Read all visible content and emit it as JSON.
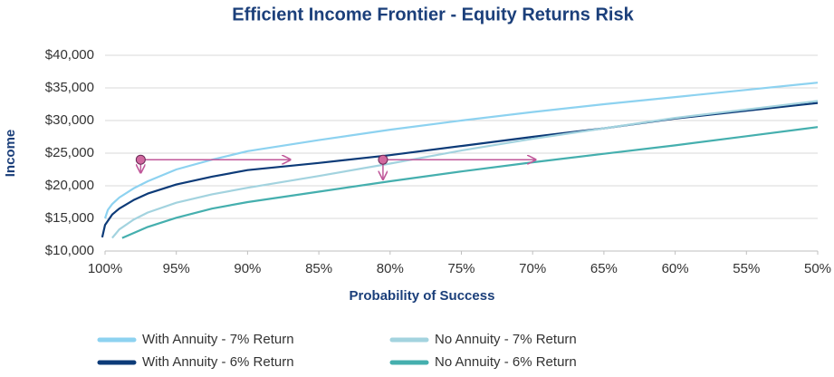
{
  "chart_data": {
    "type": "line",
    "title": "Efficient Income Frontier - Equity Returns Risk",
    "x_label": "Probability of Success",
    "y_label": "Income",
    "xlim": [
      100,
      50
    ],
    "ylim": [
      10000,
      40000
    ],
    "xticks": [
      {
        "value": 100,
        "label": "100%"
      },
      {
        "value": 95,
        "label": "95%"
      },
      {
        "value": 90,
        "label": "90%"
      },
      {
        "value": 85,
        "label": "85%"
      },
      {
        "value": 80,
        "label": "80%"
      },
      {
        "value": 75,
        "label": "75%"
      },
      {
        "value": 70,
        "label": "70%"
      },
      {
        "value": 65,
        "label": "65%"
      },
      {
        "value": 60,
        "label": "60%"
      },
      {
        "value": 55,
        "label": "55%"
      },
      {
        "value": 50,
        "label": "50%"
      }
    ],
    "yticks": [
      {
        "value": 10000,
        "label": "$10,000"
      },
      {
        "value": 15000,
        "label": "$15,000"
      },
      {
        "value": 20000,
        "label": "$20,000"
      },
      {
        "value": 25000,
        "label": "$25,000"
      },
      {
        "value": 30000,
        "label": "$30,000"
      },
      {
        "value": 35000,
        "label": "$35,000"
      },
      {
        "value": 40000,
        "label": "$40,000"
      }
    ],
    "grid": true,
    "series": [
      {
        "name": "With Annuity - 7% Return",
        "color": "#8dd2f0",
        "x": [
          100,
          99.8,
          99.5,
          99,
          98,
          97,
          95,
          92.5,
          90,
          85,
          80,
          75,
          70,
          65,
          60,
          55,
          50
        ],
        "values": [
          15000,
          16300,
          17200,
          18200,
          19600,
          20700,
          22500,
          24000,
          25300,
          27000,
          28600,
          30000,
          31300,
          32500,
          33600,
          34700,
          35800
        ]
      },
      {
        "name": "With Annuity - 6% Return",
        "color": "#0d3b78",
        "x": [
          100.2,
          100,
          99.5,
          99,
          98,
          97,
          95,
          92.5,
          90,
          85,
          80,
          75,
          70,
          65,
          60,
          55,
          50
        ],
        "values": [
          12100,
          14000,
          15600,
          16500,
          17800,
          18800,
          20200,
          21400,
          22400,
          23500,
          24700,
          26100,
          27500,
          28800,
          30300,
          31500,
          32700
        ]
      },
      {
        "name": "No Annuity - 7% Return",
        "color": "#a3d3df",
        "x": [
          99.5,
          99,
          98,
          97,
          95,
          92.5,
          90,
          85,
          80,
          75,
          70,
          65,
          60,
          55,
          50
        ],
        "values": [
          12000,
          13300,
          14800,
          15900,
          17400,
          18700,
          19700,
          21500,
          23400,
          25400,
          27200,
          28800,
          30400,
          31700,
          33000
        ]
      },
      {
        "name": "No Annuity - 6% Return",
        "color": "#45afae",
        "x": [
          98.8,
          97,
          95,
          92.5,
          90,
          85,
          80,
          75,
          70,
          65,
          60,
          55,
          50
        ],
        "values": [
          12000,
          13700,
          15100,
          16500,
          17500,
          19100,
          20700,
          22200,
          23600,
          24900,
          26200,
          27600,
          29000
        ]
      }
    ],
    "markers": [
      {
        "x": 97.5,
        "y": 24000,
        "x_to": 87,
        "y_to": 22000
      },
      {
        "x": 80.5,
        "y": 24000,
        "x_to": 69.8,
        "y_to": 21000
      }
    ]
  }
}
